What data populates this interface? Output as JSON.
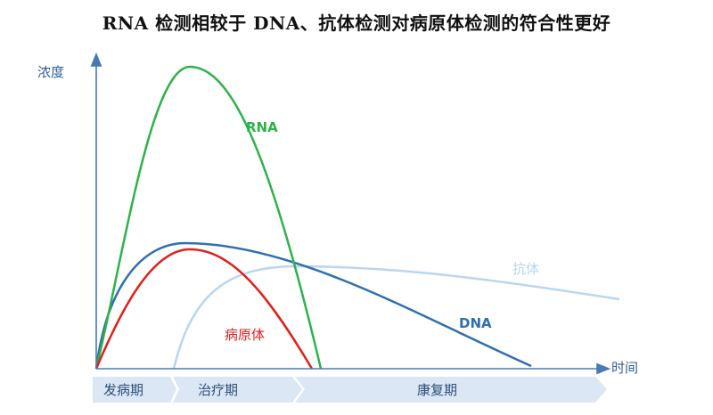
{
  "title": "RNA 检测相较于 DNA、抗体检测对病原体检测的符合性更好",
  "axes": {
    "y_label": "浓度",
    "x_label": "时间"
  },
  "curves": {
    "rna": {
      "label": "RNA",
      "color": "#2db24a"
    },
    "dna": {
      "label": "DNA",
      "color": "#2f6fae"
    },
    "pathogen": {
      "label": "病原体",
      "color": "#e0201b"
    },
    "antibody": {
      "label": "抗体",
      "color": "#b9d6ee"
    }
  },
  "phases": [
    {
      "label": "发病期"
    },
    {
      "label": "治疗期"
    },
    {
      "label": "康复期"
    }
  ],
  "colors": {
    "axis": "#4a78b5",
    "phase_fill": "#dbe7f4"
  }
}
